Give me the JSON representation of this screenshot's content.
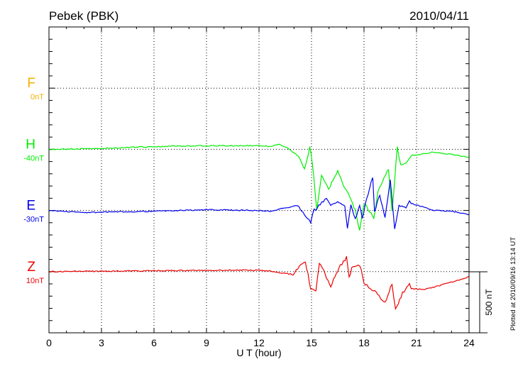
{
  "chart_data": {
    "type": "line",
    "title": "Pebek (PBK)",
    "date": "2010/04/11",
    "xlabel": "U T (hour)",
    "xlim": [
      0,
      24
    ],
    "xticks": [
      0,
      3,
      6,
      9,
      12,
      15,
      18,
      21,
      24
    ],
    "xtick_labels": [
      "0",
      "3",
      "6",
      "9",
      "12",
      "15",
      "18",
      "21",
      "24"
    ],
    "ylim_nT": [
      -500,
      2000
    ],
    "grid": true,
    "scale_bar_label": "500 nT",
    "scale_bar_nT": 500,
    "plotted_note": "Plotted at 2010/09/16 13:14 UT",
    "series": [
      {
        "name": "F",
        "baseline_label": "0nT",
        "offset_nT": 1500,
        "color": "#f5b000",
        "x": [],
        "values": []
      },
      {
        "name": "H",
        "baseline_label": "-40nT",
        "offset_nT": 1000,
        "color": "#00ee00",
        "x": [
          0,
          3,
          6,
          9,
          12,
          12.6,
          13.1,
          13.7,
          14.1,
          14.35,
          14.6,
          14.9,
          15.05,
          15.3,
          15.57,
          15.97,
          16.5,
          16.9,
          17.2,
          17.5,
          17.75,
          18.0,
          18.56,
          18.8,
          19.4,
          19.6,
          19.9,
          20.1,
          20.4,
          20.7,
          22,
          23,
          24
        ],
        "values": [
          0,
          6,
          23,
          29,
          29,
          23,
          41,
          6,
          -41,
          -70,
          -168,
          23,
          -110,
          -500,
          -209,
          -331,
          -180,
          -325,
          -389,
          -500,
          -662,
          -442,
          -558,
          -343,
          -157,
          -517,
          17,
          -128,
          -110,
          -52,
          -23,
          -41,
          -64
        ]
      },
      {
        "name": "E",
        "baseline_label": "-30nT",
        "offset_nT": 500,
        "color": "#0000ee",
        "x": [
          0,
          2,
          6,
          9,
          12,
          12.6,
          14.2,
          14.6,
          14.95,
          15.15,
          15.85,
          16.1,
          16.5,
          16.9,
          17.05,
          17.25,
          17.5,
          17.75,
          17.9,
          18.15,
          18.5,
          18.6,
          18.9,
          19.2,
          19.5,
          19.75,
          20.0,
          20.4,
          20.6,
          20.7,
          22,
          23,
          24
        ],
        "values": [
          0,
          -17,
          -6,
          6,
          0,
          -6,
          41,
          -35,
          -93,
          0,
          99,
          41,
          70,
          41,
          -134,
          58,
          -76,
          41,
          -76,
          99,
          273,
          -17,
          128,
          -58,
          256,
          -151,
          41,
          23,
          81,
          58,
          0,
          -6,
          -35
        ]
      },
      {
        "name": "Z",
        "baseline_label": "10nT",
        "offset_nT": 0,
        "color": "#ee0000",
        "x": [
          0,
          10,
          12,
          12.6,
          13.95,
          14.3,
          14.65,
          14.95,
          15.25,
          15.45,
          16.1,
          16.65,
          17.0,
          17.15,
          17.3,
          17.75,
          18.0,
          18.7,
          19.2,
          19.6,
          19.8,
          20.2,
          20.6,
          20.7,
          21.5,
          23,
          24
        ],
        "values": [
          0,
          12,
          12,
          6,
          -23,
          46,
          87,
          -140,
          -157,
          76,
          -116,
          46,
          116,
          -52,
          35,
          58,
          -87,
          -174,
          -256,
          -99,
          -314,
          -174,
          -99,
          -140,
          -145,
          -87,
          -41
        ]
      }
    ]
  }
}
